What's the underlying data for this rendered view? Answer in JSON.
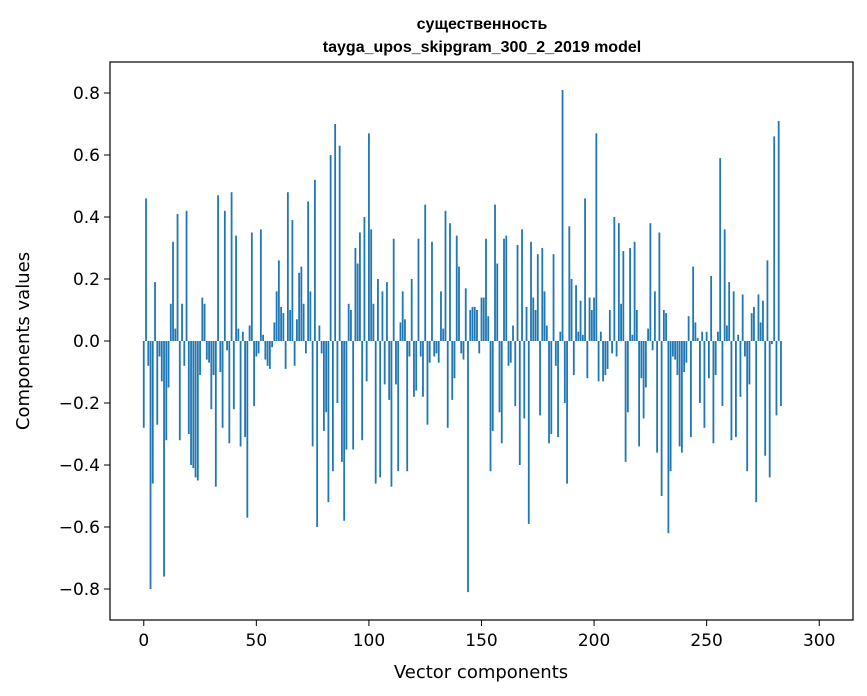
{
  "chart_data": {
    "type": "bar",
    "title_line1": "существенность",
    "title_line2": "tayga_upos_skipgram_300_2_2019 model",
    "xlabel": "Vector components",
    "ylabel": "Components values",
    "xlim": [
      -15,
      315
    ],
    "ylim": [
      -0.9,
      0.9
    ],
    "x_ticks": [
      0,
      50,
      100,
      150,
      200,
      250,
      300
    ],
    "y_ticks": [
      -0.8,
      -0.6,
      -0.4,
      -0.2,
      0.0,
      0.2,
      0.4,
      0.6,
      0.8
    ],
    "x_tick_labels": [
      "0",
      "50",
      "100",
      "150",
      "200",
      "250",
      "300"
    ],
    "y_tick_labels": [
      "−0.8",
      "−0.6",
      "−0.4",
      "−0.2",
      "0.0",
      "0.2",
      "0.4",
      "0.6",
      "0.8"
    ],
    "bar_color": "#1f77b4",
    "values": [
      -0.28,
      0.46,
      -0.08,
      -0.8,
      -0.46,
      0.19,
      -0.27,
      -0.05,
      -0.13,
      -0.76,
      -0.32,
      -0.15,
      0.12,
      0.32,
      0.04,
      0.41,
      -0.32,
      0.12,
      -0.08,
      0.42,
      -0.3,
      -0.4,
      -0.41,
      -0.44,
      -0.45,
      -0.11,
      0.14,
      0.12,
      -0.06,
      -0.07,
      -0.22,
      -0.11,
      -0.47,
      0.47,
      -0.1,
      -0.28,
      0.42,
      -0.03,
      -0.33,
      0.48,
      -0.22,
      0.34,
      0.04,
      -0.34,
      0.03,
      -0.31,
      -0.57,
      0.05,
      0.35,
      -0.21,
      -0.05,
      -0.04,
      0.36,
      0.02,
      -0.06,
      -0.08,
      -0.09,
      -0.02,
      0.06,
      0.16,
      0.26,
      0.11,
      0.09,
      -0.09,
      0.48,
      0.1,
      0.39,
      -0.08,
      0.07,
      0.22,
      0.24,
      0.12,
      -0.04,
      0.45,
      0.16,
      -0.34,
      0.52,
      -0.6,
      0.05,
      -0.04,
      -0.29,
      -0.23,
      -0.52,
      0.6,
      -0.42,
      0.7,
      -0.2,
      0.63,
      -0.39,
      -0.58,
      -0.35,
      0.12,
      0.1,
      -0.35,
      0.3,
      0.25,
      0.35,
      -0.32,
      0.4,
      -0.13,
      0.67,
      0.36,
      0.12,
      -0.46,
      0.2,
      -0.44,
      0.16,
      -0.14,
      0.19,
      -0.19,
      -0.47,
      0.33,
      -0.14,
      -0.42,
      0.06,
      0.16,
      0.07,
      -0.42,
      -0.05,
      0.2,
      -0.18,
      -0.16,
      0.33,
      -0.05,
      -0.18,
      0.44,
      -0.27,
      -0.07,
      0.32,
      -0.05,
      -0.04,
      -0.07,
      0.16,
      0.04,
      0.42,
      -0.28,
      0.38,
      -0.19,
      -0.12,
      0.34,
      0.24,
      -0.04,
      -0.06,
      0.17,
      -0.81,
      0.1,
      0.11,
      0.11,
      0.1,
      -0.04,
      0.14,
      0.14,
      0.33,
      0.08,
      -0.42,
      -0.29,
      0.44,
      0.25,
      -0.23,
      -0.33,
      0.33,
      0.34,
      -0.08,
      -0.07,
      0.05,
      -0.21,
      0.31,
      -0.4,
      0.36,
      -0.25,
      0.11,
      -0.59,
      0.32,
      0.14,
      0.1,
      0.28,
      -0.24,
      0.3,
      0.16,
      0.05,
      -0.33,
      -0.3,
      0.28,
      -0.08,
      -0.31,
      0.03,
      0.81,
      -0.2,
      -0.46,
      0.37,
      0.2,
      -0.11,
      0.18,
      0.03,
      0.13,
      0.02,
      0.46,
      -0.12,
      0.14,
      0.1,
      0.14,
      0.67,
      -0.13,
      0.03,
      -0.13,
      -0.11,
      -0.09,
      0.1,
      -0.04,
      0.4,
      -0.05,
      0.38,
      0.12,
      0.29,
      -0.39,
      -0.23,
      0.3,
      0.02,
      0.32,
      0.1,
      -0.34,
      -0.12,
      -0.25,
      -0.15,
      0.04,
      0.38,
      -0.03,
      0.16,
      -0.36,
      0.35,
      -0.5,
      0.1,
      0.09,
      -0.62,
      -0.42,
      -0.05,
      -0.06,
      -0.11,
      -0.34,
      -0.36,
      -0.1,
      -0.07,
      0.08,
      -0.31,
      0.24,
      0.06,
      0.01,
      -0.2,
      0.03,
      -0.28,
      0.03,
      -0.12,
      0.21,
      -0.33,
      -0.11,
      0.03,
      0.59,
      -0.21,
      0.36,
      0.05,
      0.19,
      -0.32,
      0.16,
      -0.31,
      0.02,
      -0.18,
      0.15,
      -0.05,
      -0.42,
      -0.14,
      0.09,
      0.11,
      -0.52,
      0.15,
      0.06,
      0.13,
      -0.37,
      0.26,
      -0.44,
      -0.01,
      0.66,
      -0.24,
      0.71,
      -0.21
    ]
  }
}
